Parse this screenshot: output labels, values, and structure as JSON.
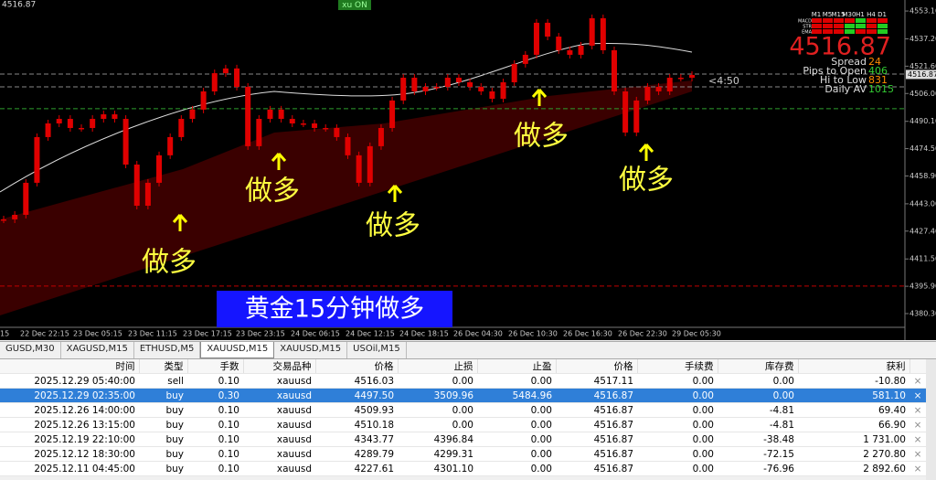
{
  "chart_data": {
    "type": "candlestick",
    "top_price": "4516.87",
    "button": "xu ON",
    "color": "#e00000",
    "closes": [
      4434.1,
      4436.7,
      4455.0,
      4481.1,
      4488.9,
      4491.5,
      4486.3,
      4486.3,
      4491.5,
      4494.1,
      4491.5,
      4465.4,
      4441.9,
      4455.0,
      4470.7,
      4481.1,
      4491.5,
      4496.8,
      4507.2,
      4517.6,
      4520.3,
      4509.8,
      4475.9,
      4491.5,
      4496.8,
      4491.5,
      4488.9,
      4488.9,
      4486.3,
      4486.3,
      4481.1,
      4470.7,
      4455.0,
      4475.9,
      4486.3,
      4502.0,
      4515.0,
      4507.2,
      4509.8,
      4509.8,
      4515.0,
      4512.4,
      4509.8,
      4507.2,
      4503.0,
      4512.4,
      4522.9,
      4528.1,
      4546.4,
      4538.5,
      4530.7,
      4528.1,
      4533.3,
      4549.0,
      4530.7,
      4507.2,
      4483.7,
      4502.0,
      4509.8,
      4507.2,
      4515.0,
      4515.0,
      4516.6
    ],
    "ylim": [
      4368.8,
      4559.4
    ],
    "yticks": [
      {
        "value": 4553.1,
        "label": "4553.10"
      },
      {
        "value": 4537.2,
        "label": "4537.20"
      },
      {
        "value": 4521.6,
        "label": "4521.60"
      },
      {
        "value": 4506.0,
        "label": "4506.00"
      },
      {
        "value": 4490.1,
        "label": "4490.10"
      },
      {
        "value": 4474.5,
        "label": "4474.50"
      },
      {
        "value": 4458.9,
        "label": "4458.90"
      },
      {
        "value": 4443.0,
        "label": "4443.00"
      },
      {
        "value": 4427.4,
        "label": "4427.40"
      },
      {
        "value": 4411.5,
        "label": "4411.50"
      },
      {
        "value": 4395.9,
        "label": "4395.90"
      },
      {
        "value": 4380.3,
        "label": "4380.30"
      }
    ],
    "current": {
      "value": 4516.87,
      "label": "4516.87"
    },
    "x_labels": [
      "15",
      "22 Dec 22:15",
      "23 Dec 05:15",
      "23 Dec 11:15",
      "23 Dec 17:15",
      "23 Dec 23:15",
      "24 Dec 06:15",
      "24 Dec 12:15",
      "24 Dec 18:15",
      "26 Dec 04:30",
      "26 Dec 10:30",
      "26 Dec 16:30",
      "26 Dec 22:30",
      "29 Dec 05:30"
    ],
    "levels": [
      {
        "value": 4517.1,
        "color": "#888888"
      },
      {
        "value": 4509.8,
        "color": "#888888"
      },
      {
        "value": 4497.3,
        "color": "#2e9e2e"
      },
      {
        "value": 4396.0,
        "color": "#c00000"
      }
    ],
    "annotations": [
      "做多",
      "做多",
      "做多",
      "做多",
      "做多"
    ],
    "banner": "黄金15分钟做多",
    "countdown": "<4:50",
    "info": {
      "price": "4516.87",
      "rows": [
        {
          "label": "Spread",
          "value": "24",
          "color": "#ff8c00"
        },
        {
          "label": "Pips to Open",
          "value": "406",
          "color": "#33cc33"
        },
        {
          "label": "Hi to Low",
          "value": "831",
          "color": "#ff8c00"
        },
        {
          "label": "Daily AV",
          "value": "1015",
          "color": "#33cc33"
        }
      ]
    },
    "signals": {
      "columns": [
        "M1",
        "M5",
        "M15",
        "M30",
        "H1",
        "H4",
        "D1"
      ],
      "rows": [
        "MACD",
        "STR",
        "EMA"
      ]
    }
  },
  "tabs": [
    "GUSD,M30",
    "XAGUSD,M15",
    "ETHUSD,M5",
    "XAUUSD,M15",
    "XAUUSD,M15",
    "USOil,M15"
  ],
  "table": {
    "columns": [
      "时间",
      "类型",
      "手数",
      "交易品种",
      "价格",
      "止损",
      "止盈",
      "价格",
      "手续费",
      "库存费",
      "获利"
    ],
    "rows": [
      [
        "2025.12.29 05:40:00",
        "sell",
        "0.10",
        "xauusd",
        "4516.03",
        "0.00",
        "0.00",
        "4517.11",
        "0.00",
        "0.00",
        "-10.80"
      ],
      [
        "2025.12.29 02:35:00",
        "buy",
        "0.30",
        "xauusd",
        "4497.50",
        "3509.96",
        "5484.96",
        "4516.87",
        "0.00",
        "0.00",
        "581.10"
      ],
      [
        "2025.12.26 14:00:00",
        "buy",
        "0.10",
        "xauusd",
        "4509.93",
        "0.00",
        "0.00",
        "4516.87",
        "0.00",
        "-4.81",
        "69.40"
      ],
      [
        "2025.12.26 13:15:00",
        "buy",
        "0.10",
        "xauusd",
        "4510.18",
        "0.00",
        "0.00",
        "4516.87",
        "0.00",
        "-4.81",
        "66.90"
      ],
      [
        "2025.12.19 22:10:00",
        "buy",
        "0.10",
        "xauusd",
        "4343.77",
        "4396.84",
        "0.00",
        "4516.87",
        "0.00",
        "-38.48",
        "1 731.00"
      ],
      [
        "2025.12.12 18:30:00",
        "buy",
        "0.10",
        "xauusd",
        "4289.79",
        "4299.31",
        "0.00",
        "4516.87",
        "0.00",
        "-72.15",
        "2 270.80"
      ],
      [
        "2025.12.11 04:45:00",
        "buy",
        "0.10",
        "xauusd",
        "4227.61",
        "4301.10",
        "0.00",
        "4516.87",
        "0.00",
        "-76.96",
        "2 892.60"
      ]
    ]
  }
}
